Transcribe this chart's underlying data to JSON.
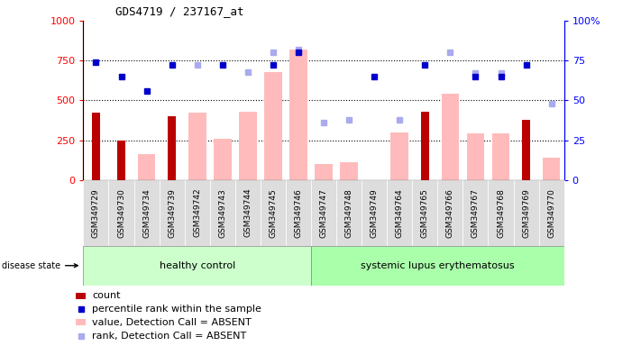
{
  "title": "GDS4719 / 237167_at",
  "samples": [
    "GSM349729",
    "GSM349730",
    "GSM349734",
    "GSM349739",
    "GSM349742",
    "GSM349743",
    "GSM349744",
    "GSM349745",
    "GSM349746",
    "GSM349747",
    "GSM349748",
    "GSM349749",
    "GSM349764",
    "GSM349765",
    "GSM349766",
    "GSM349767",
    "GSM349768",
    "GSM349769",
    "GSM349770"
  ],
  "count": [
    420,
    250,
    0,
    400,
    0,
    0,
    0,
    0,
    0,
    0,
    0,
    0,
    0,
    430,
    0,
    0,
    0,
    380,
    0
  ],
  "percentile_rank": [
    74,
    65,
    56,
    72,
    null,
    72,
    null,
    72,
    80,
    null,
    null,
    65,
    null,
    72,
    null,
    65,
    65,
    72,
    null
  ],
  "value_absent": [
    null,
    null,
    160,
    null,
    420,
    260,
    430,
    680,
    820,
    100,
    110,
    null,
    300,
    null,
    540,
    290,
    290,
    null,
    140
  ],
  "rank_absent": [
    null,
    null,
    null,
    null,
    72,
    null,
    68,
    80,
    82,
    36,
    38,
    null,
    38,
    null,
    80,
    67,
    67,
    null,
    48
  ],
  "healthy_control_count": 9,
  "group1_label": "healthy control",
  "group2_label": "systemic lupus erythematosus",
  "disease_state_label": "disease state",
  "ylim_left": [
    0,
    1000
  ],
  "ylim_right": [
    0,
    100
  ],
  "yticks_left": [
    0,
    250,
    500,
    750,
    1000
  ],
  "yticks_right": [
    0,
    25,
    50,
    75,
    100
  ],
  "bar_color_count": "#bb0000",
  "bar_color_absent": "#ffbbbb",
  "dot_color_percentile": "#0000cc",
  "dot_color_rank_absent": "#aaaaee",
  "group1_color": "#ccffcc",
  "group2_color": "#aaffaa",
  "xtick_bg": "#dddddd",
  "legend_items": [
    {
      "label": "count",
      "color": "#bb0000",
      "type": "bar"
    },
    {
      "label": "percentile rank within the sample",
      "color": "#0000cc",
      "type": "dot"
    },
    {
      "label": "value, Detection Call = ABSENT",
      "color": "#ffbbbb",
      "type": "bar"
    },
    {
      "label": "rank, Detection Call = ABSENT",
      "color": "#aaaaee",
      "type": "dot"
    }
  ]
}
